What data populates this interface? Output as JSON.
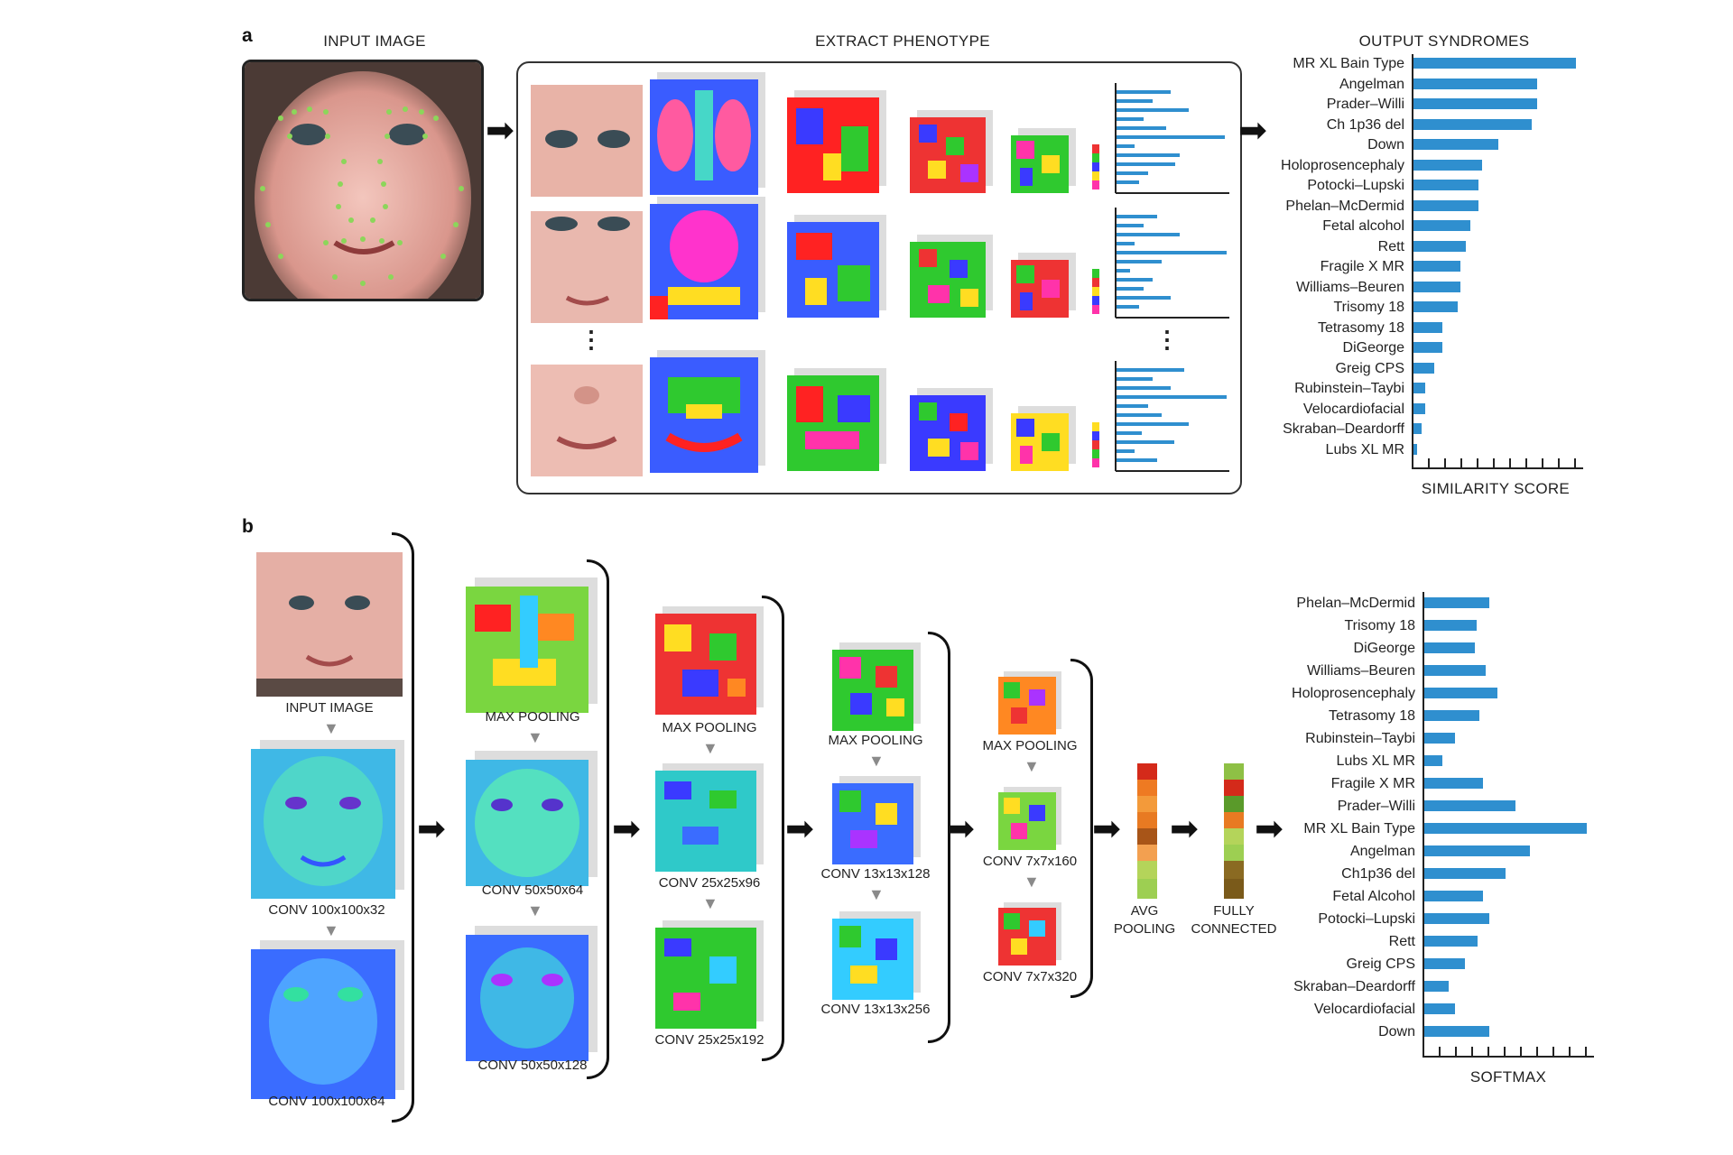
{
  "panel_a": {
    "label": "a",
    "input_title": "INPUT IMAGE",
    "extract_title": "EXTRACT PHENOTYPE",
    "output_title": "OUTPUT SYNDROMES",
    "x_axis_label": "SIMILARITY SCORE",
    "ellipsis": "⋮",
    "face_photo": "child-face-with-landmarks",
    "chart_data": {
      "type": "bar",
      "title": "OUTPUT SYNDROMES",
      "xlabel": "SIMILARITY SCORE",
      "orientation": "horizontal",
      "categories": [
        "MR XL Bain Type",
        "Angelman",
        "Prader–Willi",
        "Ch 1p36 del",
        "Down",
        "Holoprosencephaly",
        "Potocki–Lupski",
        "Phelan–McDermid",
        "Fetal alcohol",
        "Rett",
        "Fragile X MR",
        "Williams–Beuren",
        "Trisomy 18",
        "Tetrasomy 18",
        "DiGeorge",
        "Greig CPS",
        "Rubinstein–Taybi",
        "Velocardiofacial",
        "Skraban–Deardorff",
        "Lubs XL MR"
      ],
      "values": [
        10.0,
        7.6,
        7.6,
        7.3,
        5.2,
        4.2,
        4.0,
        4.0,
        3.5,
        3.2,
        2.9,
        2.9,
        2.7,
        1.8,
        1.8,
        1.3,
        0.7,
        0.7,
        0.5,
        0.2
      ],
      "xlim": [
        0,
        10
      ]
    }
  },
  "panel_b": {
    "label": "b",
    "input_image_label": "INPUT IMAGE",
    "stages": [
      {
        "top": "CONV 100x100x32",
        "bottom": "CONV 100x100x64"
      },
      {
        "top": "MAX POOLING",
        "mid": "CONV 50x50x64",
        "bottom": "CONV 50x50x128"
      },
      {
        "top": "MAX POOLING",
        "mid": "CONV 25x25x96",
        "bottom": "CONV 25x25x192"
      },
      {
        "top": "MAX POOLING",
        "mid": "CONV 13x13x128",
        "bottom": "CONV 13x13x256"
      },
      {
        "top": "MAX POOLING",
        "mid": "CONV 7x7x160",
        "bottom": "CONV 7x7x320"
      }
    ],
    "avg_pooling": "AVG\nPOOLING",
    "fully_connected": "FULLY\nCONNECTED",
    "softmax_label": "SOFTMAX",
    "chart_data": {
      "type": "bar",
      "xlabel": "SOFTMAX",
      "orientation": "horizontal",
      "categories": [
        "Phelan–McDermid",
        "Trisomy 18",
        "DiGeorge",
        "Williams–Beuren",
        "Holoprosencephaly",
        "Tetrasomy 18",
        "Rubinstein–Taybi",
        "Lubs XL MR",
        "Fragile X MR",
        "Prader–Willi",
        "MR XL Bain Type",
        "Angelman",
        "Ch1p36 del",
        "Fetal Alcohol",
        "Potocki–Lupski",
        "Rett",
        "Greig CPS",
        "Skraban–Deardorff",
        "Velocardiofacial",
        "Down"
      ],
      "values": [
        4.0,
        3.2,
        3.1,
        3.8,
        4.5,
        3.4,
        1.9,
        1.1,
        3.6,
        5.6,
        10.0,
        6.5,
        5.0,
        3.6,
        4.0,
        3.3,
        2.5,
        1.5,
        1.9,
        4.0
      ],
      "xlim": [
        0,
        10
      ]
    }
  },
  "colors": {
    "bar": "#2f8fcf",
    "text": "#222222"
  }
}
